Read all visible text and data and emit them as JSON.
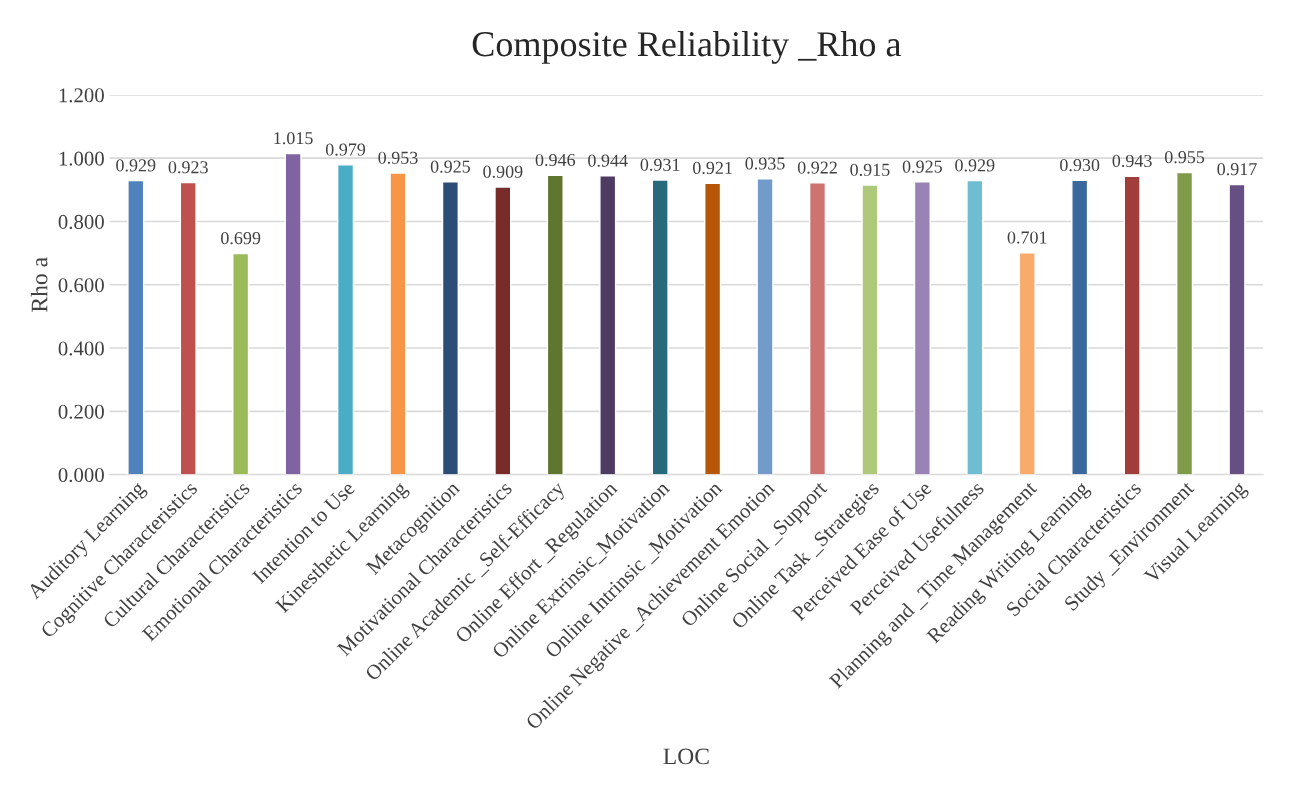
{
  "chart_data": {
    "type": "bar",
    "title": "Composite Reliability _Rho a",
    "xlabel": "LOC",
    "ylabel": "Rho a",
    "categories": [
      "Auditory Learning",
      "Cognitive Characteristics",
      "Cultural Characteristics",
      "Emotional Characteristics",
      "Intention to Use",
      "Kinesthetic Learning",
      "Metacognition",
      "Motivational Characteristics",
      "Online Academic _Self-Efficacy",
      "Online Effort _Regulation",
      "Online Extrinsic_Motivation",
      "Online Intrinsic _Motivation",
      "Online Negative _Achievement Emotion",
      "Online Social _Support",
      "Online Task _Strategies",
      "Perceived Ease of Use",
      "Perceived Usefulness",
      "Planning and _Time Management",
      "Reading Writing Learning",
      "Social Characteristics",
      "Study _Environment",
      "Visual Learning"
    ],
    "values": [
      0.929,
      0.923,
      0.699,
      1.015,
      0.979,
      0.953,
      0.925,
      0.909,
      0.946,
      0.944,
      0.931,
      0.921,
      0.935,
      0.922,
      0.915,
      0.925,
      0.929,
      0.701,
      0.93,
      0.943,
      0.955,
      0.917
    ],
    "value_labels": [
      "0.929",
      "0.923",
      "0.699",
      "1.015",
      "0.979",
      "0.953",
      "0.925",
      "0.909",
      "0.946",
      "0.944",
      "0.931",
      "0.921",
      "0.935",
      "0.922",
      "0.915",
      "0.925",
      "0.929",
      "0.701",
      "0.930",
      "0.943",
      "0.955",
      "0.917"
    ],
    "colors": [
      "#4f81bd",
      "#c0504d",
      "#9bbb59",
      "#8064a2",
      "#4bacc6",
      "#f79646",
      "#2c4d75",
      "#772c2a",
      "#5f7530",
      "#4d3b62",
      "#276a7c",
      "#b65708",
      "#729aca",
      "#cd7371",
      "#afc97a",
      "#9983b5",
      "#6fbdd1",
      "#f9ab6b",
      "#3a679c",
      "#9f3e3b",
      "#7f9a48",
      "#664f83"
    ],
    "ylim": [
      0,
      1.2
    ],
    "yticks": [
      {
        "value": 0,
        "label": "0.000"
      },
      {
        "value": 0.2,
        "label": "0.200"
      },
      {
        "value": 0.4,
        "label": "0.400"
      },
      {
        "value": 0.6,
        "label": "0.600"
      },
      {
        "value": 0.8,
        "label": "0.800"
      },
      {
        "value": 1.0,
        "label": "1.000"
      },
      {
        "value": 1.2,
        "label": "1.200"
      }
    ],
    "grid": "y"
  }
}
